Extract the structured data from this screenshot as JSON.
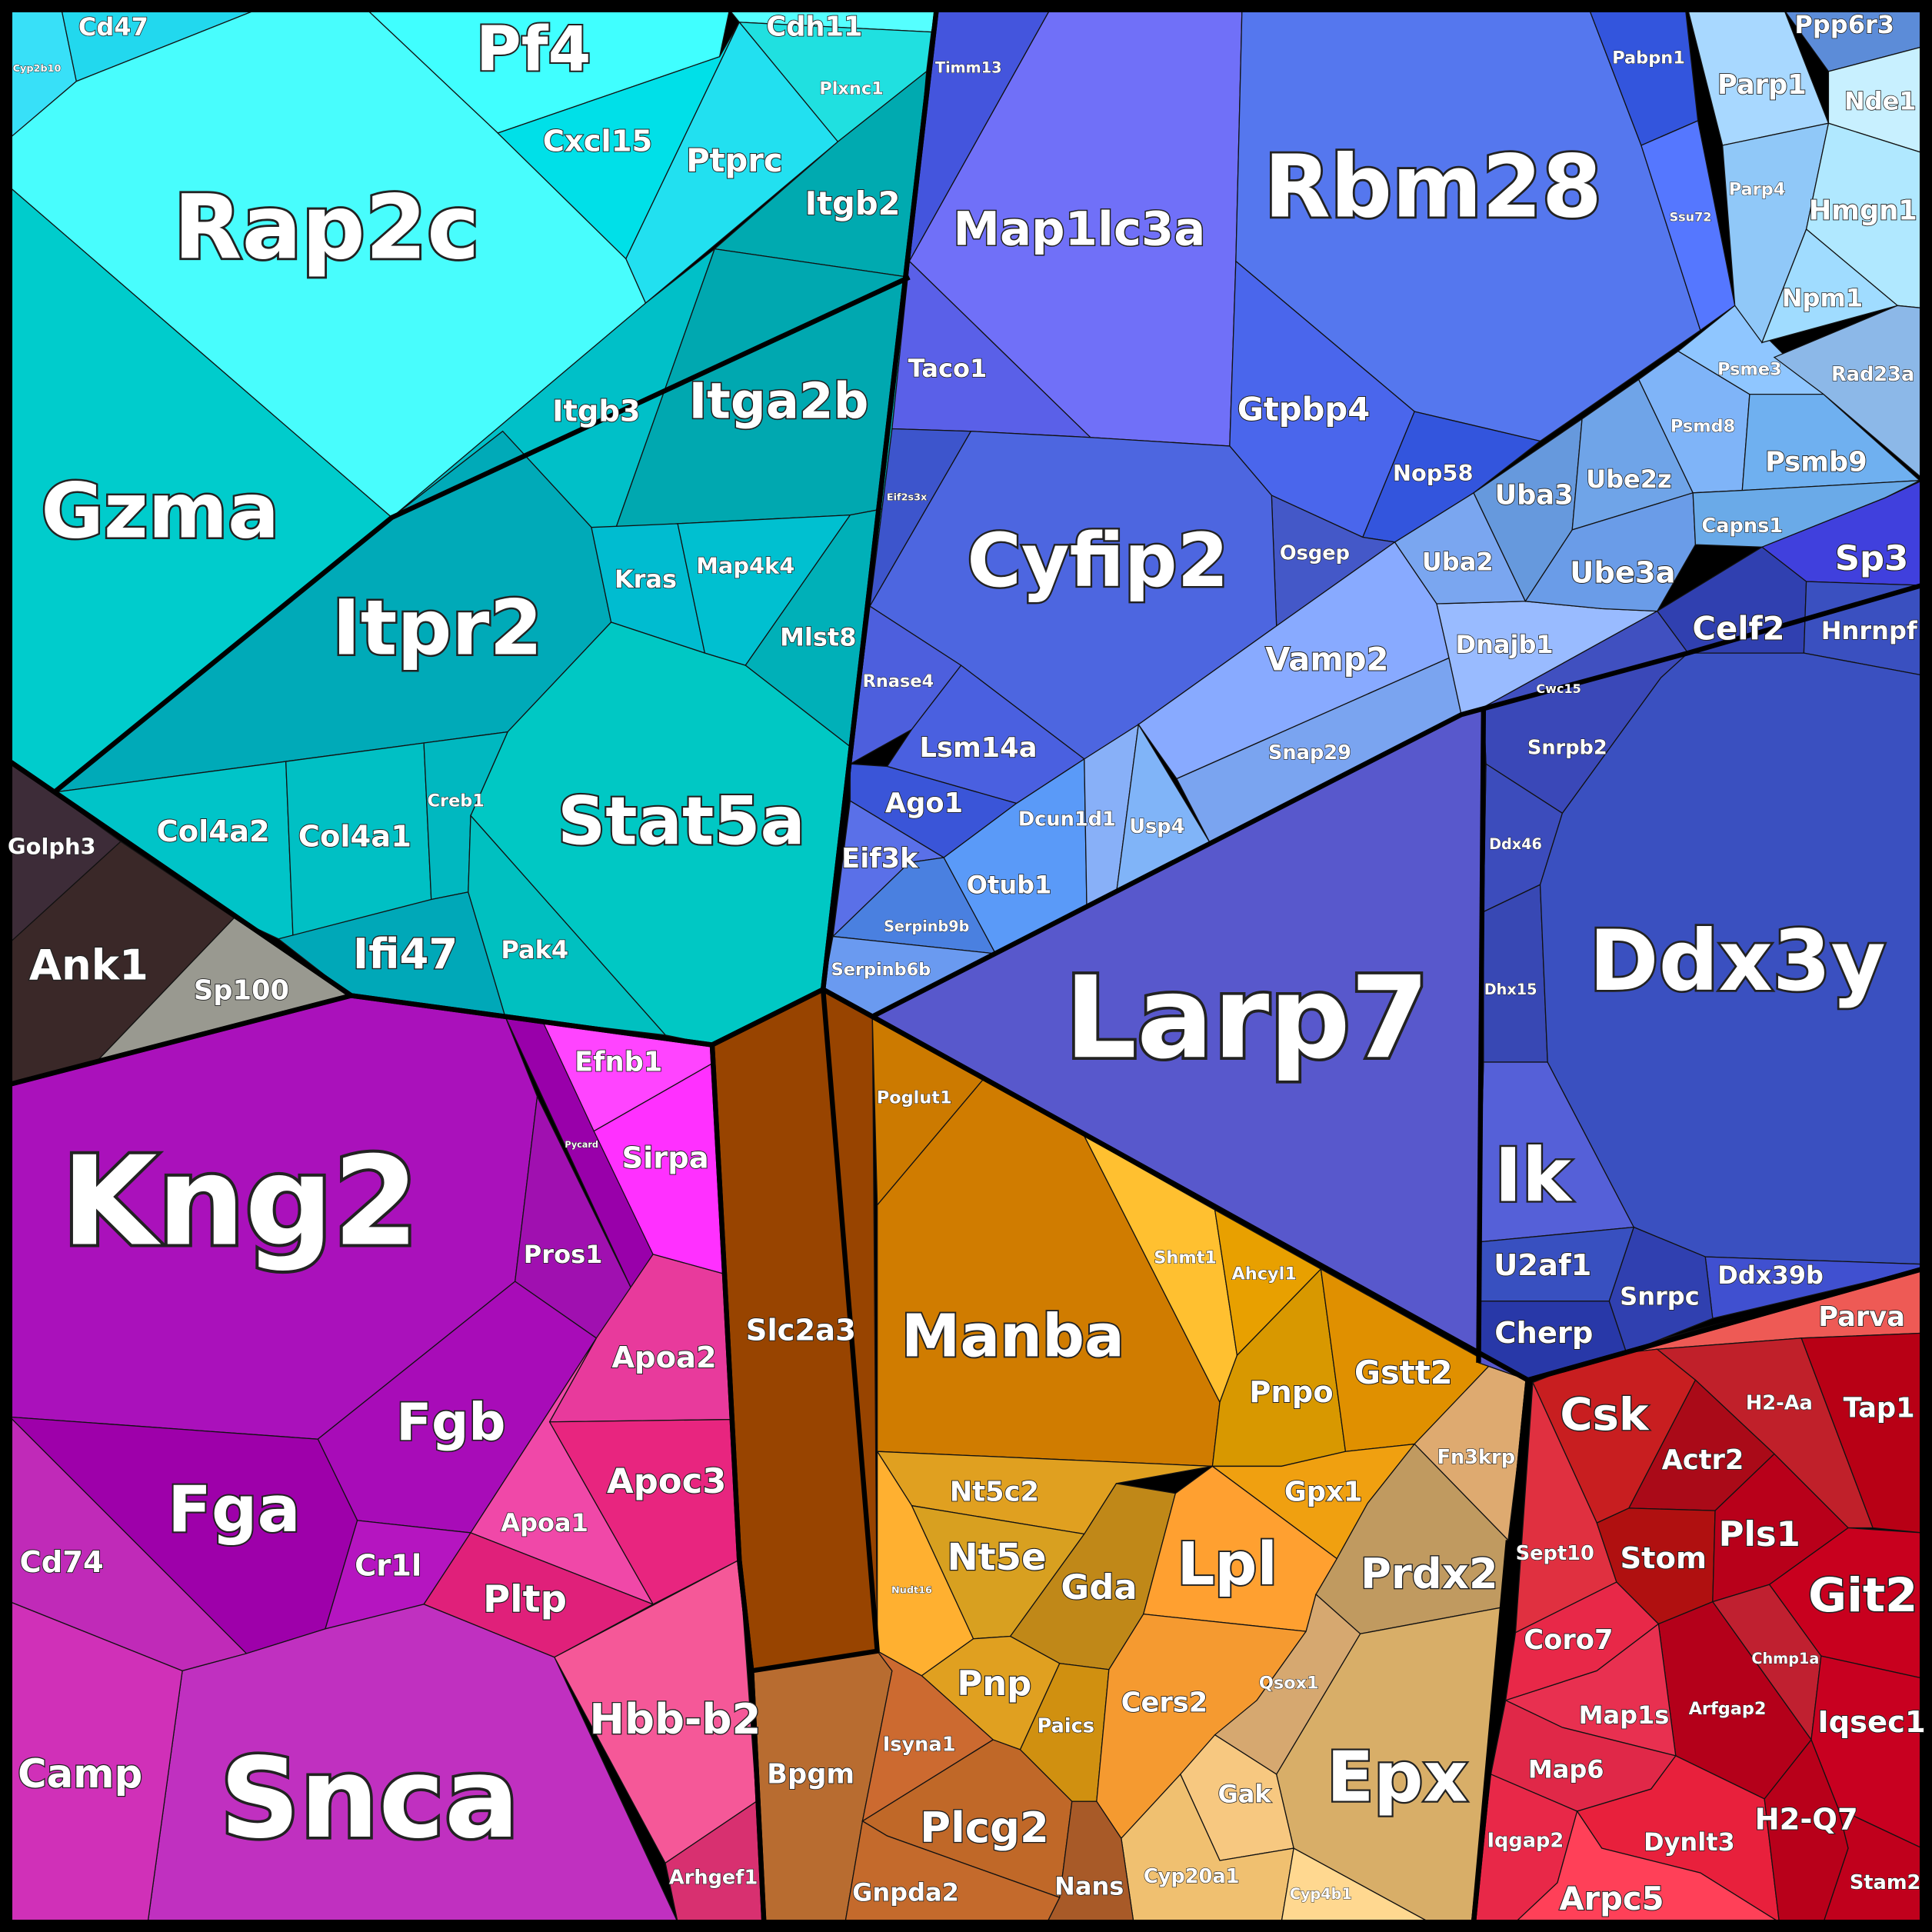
{
  "cells": [
    "Cyp2b10",
    "Cd47",
    "Pf4",
    "Rap2c",
    "Cdh11",
    "Plxnc1",
    "Cxcl15",
    "Ptprc",
    "Itgb2",
    "Itgb3",
    "Itga2b",
    "Gzma",
    "Itpr2",
    "Kras",
    "Map4k4",
    "Mlst8",
    "Stat5a",
    "Col4a2",
    "Col4a1",
    "Creb1",
    "Ifi47",
    "Pak4",
    "Golph3",
    "Ank1",
    "Sp100",
    "Kng2",
    "Pycard",
    "Efnb1",
    "Sirpa",
    "Pros1",
    "Fgb",
    "Fga",
    "Cd74",
    "Cr1l",
    "Apoa2",
    "Apoc3",
    "Apoa1",
    "Pltp",
    "Snca",
    "Camp",
    "Hbb-b2",
    "Arhgef1",
    "Slc2a3",
    "Poglut1",
    "Manba",
    "Shmt1",
    "Ahcyl1",
    "Pnpo",
    "Gstt2",
    "Gpx1",
    "Fn3krp",
    "Prdx2",
    "Nt5c2",
    "Nudt16",
    "Nt5e",
    "Gda",
    "Lpl",
    "Pnp",
    "Paics",
    "Cers2",
    "Qsox1",
    "Gak",
    "Cyp20a1",
    "Cyp4b1",
    "Epx",
    "Bpgm",
    "Isyna1",
    "Plcg2",
    "Gnpda2",
    "Nans",
    "Parva",
    "Csk",
    "H2-Aa",
    "Tap1",
    "Actr2",
    "Sept10",
    "Stom",
    "Pls1",
    "Git2",
    "Coro7",
    "Chmp1a",
    "Arfgap2",
    "Iqsec1",
    "Map1s",
    "Map6",
    "Iqgap2",
    "Dynlt3",
    "Arpc5",
    "H2-Q7",
    "Stam2",
    "Timm13",
    "Map1lc3a",
    "Taco1",
    "Rbm28",
    "Pabpn1",
    "Ssu72",
    "Gtpbp4",
    "Nop58",
    "Osgep",
    "Eif2s3x",
    "Cyfip2",
    "Rnase4",
    "Lsm14a",
    "Ago1",
    "Eif3k",
    "Serpinb9b",
    "Serpinb6b",
    "Otub1",
    "Dcun1d1",
    "Usp4",
    "Vamp2",
    "Snap29",
    "Dnajb1",
    "Uba2",
    "Uba3",
    "Ube2z",
    "Ube3a",
    "Psmd8",
    "Psme3",
    "Psmb9",
    "Capns1",
    "Parp1",
    "Ppp6r3",
    "Nde1",
    "Parp4",
    "Hmgn1",
    "Npm1",
    "Rad23a",
    "Sp3",
    "Celf2",
    "Hnrnpf",
    "Cwc15",
    "Snrpb2",
    "Ddx46",
    "Dhx15",
    "Ik",
    "Ddx3y",
    "U2af1",
    "Ddx39b",
    "Snrpc",
    "Cherp",
    "Larp7"
  ]
}
